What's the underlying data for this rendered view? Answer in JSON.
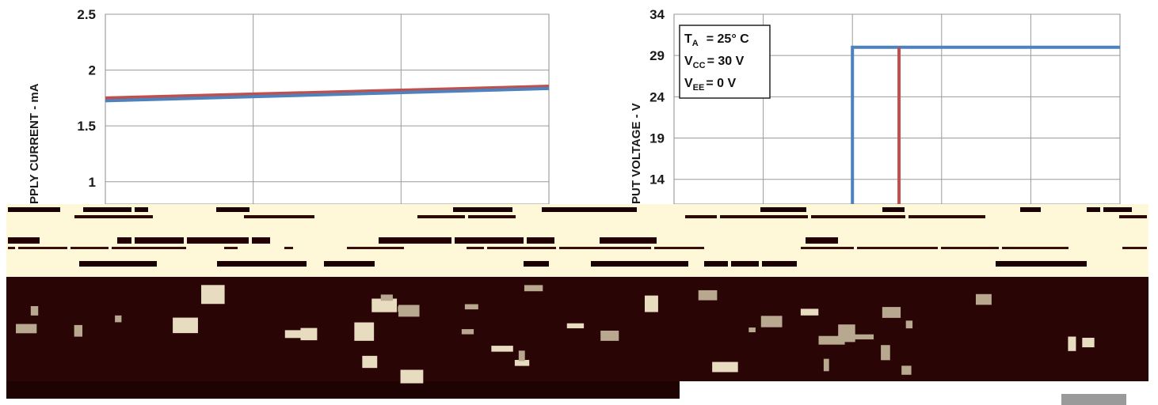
{
  "chart_data": [
    {
      "type": "line",
      "title": "",
      "xlabel": "",
      "ylabel": "SUPPLY CURRENT - mA",
      "ylabel_visible": "PPLY CURRENT - mA",
      "ylim": [
        0.8,
        2.5
      ],
      "yticks": [
        "2.5",
        "2",
        "1.5",
        "1"
      ],
      "xlim": [
        0,
        3
      ],
      "series": [
        {
          "color": "#c0504d",
          "x": [
            0,
            3
          ],
          "values": [
            1.75,
            1.855
          ]
        },
        {
          "color": "#4f81bd",
          "x": [
            0,
            3
          ],
          "values": [
            1.725,
            1.835
          ]
        }
      ],
      "grid": true
    },
    {
      "type": "line",
      "title": "",
      "xlabel": "",
      "ylabel": "OUTPUT VOLTAGE - V",
      "ylabel_visible": "PUT VOLTAGE - V",
      "ylim": [
        11,
        34
      ],
      "yticks": [
        "34",
        "29",
        "24",
        "19",
        "14"
      ],
      "xlim": [
        0,
        11
      ],
      "series": [
        {
          "color": "#4f81bd",
          "x": [
            4.4,
            4.4,
            11
          ],
          "values": [
            11,
            30,
            30
          ]
        },
        {
          "color": "#c0504d",
          "x": [
            5.55,
            5.55
          ],
          "values": [
            11,
            30
          ]
        }
      ],
      "grid": true,
      "annotation": {
        "ta": "T",
        "ta_sub": "A",
        "ta_val": "= 25° C",
        "vcc": "V",
        "vcc_sub": "CC",
        "vcc_val": "= 30 V",
        "vee": "V",
        "vee_sub": "EE",
        "vee_val": "= 0 V"
      }
    }
  ]
}
